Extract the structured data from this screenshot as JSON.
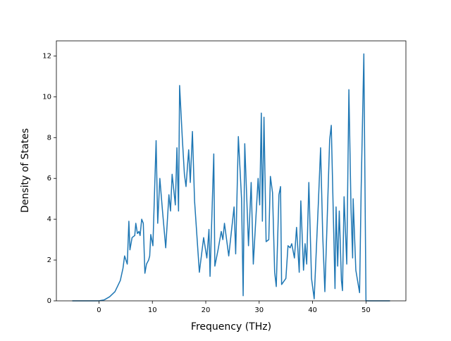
{
  "chart_data": {
    "type": "line",
    "x_label": "Frequency (THz)",
    "y_label": "Density of States",
    "xlim": [
      -7.975,
      57.475
    ],
    "ylim": [
      0,
      12.74
    ],
    "xticks": [
      0,
      10,
      20,
      30,
      40,
      50
    ],
    "yticks": [
      0,
      2,
      4,
      6,
      8,
      10,
      12
    ],
    "series": [
      {
        "color": "#1f77b4",
        "x": [
          -5,
          -2.5,
          0,
          1,
          2,
          3,
          4,
          4.5,
          4.8,
          5.3,
          5.6,
          5.8,
          6.2,
          6.7,
          6.9,
          7.2,
          7.5,
          7.7,
          8.0,
          8.3,
          8.6,
          8.9,
          9.3,
          9.5,
          9.7,
          10.1,
          10.7,
          11,
          11.4,
          11.9,
          12.5,
          13.1,
          13.4,
          13.7,
          14.3,
          14.6,
          14.9,
          15.1,
          15.6,
          16,
          16.3,
          16.8,
          17.1,
          17.5,
          17.9,
          18.8,
          19.6,
          20.2,
          20.6,
          20.8,
          21.5,
          21.7,
          22.3,
          22.9,
          23.2,
          23.5,
          24.3,
          25.3,
          25.6,
          26.1,
          26.7,
          27,
          27.3,
          28,
          28.5,
          28.9,
          29.8,
          30.1,
          30.4,
          30.6,
          30.9,
          31.3,
          31.8,
          32.1,
          32.5,
          32.9,
          33.2,
          33.7,
          34,
          34.2,
          35,
          35.4,
          35.8,
          36.1,
          36.6,
          37,
          37.5,
          37.8,
          38.3,
          38.6,
          38.9,
          39.3,
          39.8,
          40.3,
          41.1,
          41.5,
          41.9,
          42.3,
          42.7,
          43.2,
          43.5,
          44.2,
          44.4,
          44.7,
          45,
          45.4,
          45.6,
          45.9,
          46.4,
          46.8,
          47.2,
          47.5,
          47.6,
          48.1,
          48.8,
          49.1,
          49.6,
          50,
          52,
          54.5
        ],
        "values": [
          0,
          0,
          0,
          0.05,
          0.2,
          0.45,
          1.0,
          1.6,
          2.2,
          1.8,
          3.9,
          2.5,
          3.1,
          3.2,
          3.8,
          3.3,
          3.4,
          3.2,
          4.0,
          3.8,
          1.35,
          1.8,
          2.0,
          2.2,
          3.25,
          2.7,
          7.85,
          3.8,
          6.0,
          4.4,
          2.6,
          5.2,
          4.4,
          6.2,
          4.7,
          7.5,
          4.4,
          10.55,
          8.0,
          6.2,
          5.6,
          7.4,
          5.8,
          8.3,
          4.9,
          1.4,
          3.1,
          2.1,
          3.5,
          1.2,
          7.2,
          1.7,
          2.5,
          3.4,
          3.0,
          3.8,
          2.2,
          4.6,
          2.3,
          8.05,
          5.0,
          0.25,
          7.7,
          2.7,
          5.8,
          1.8,
          6.0,
          4.7,
          9.2,
          3.9,
          9.0,
          2.9,
          3.0,
          6.1,
          5.3,
          1.4,
          0.7,
          5.2,
          5.6,
          0.8,
          1.1,
          2.7,
          2.6,
          2.8,
          2.1,
          3.6,
          1.4,
          4.9,
          1.5,
          2.8,
          1.8,
          5.8,
          1.1,
          0.1,
          4.9,
          7.5,
          3.2,
          0.45,
          3.7,
          7.9,
          8.6,
          0.6,
          4.6,
          1.7,
          4.4,
          1.0,
          0.5,
          5.1,
          1.8,
          10.35,
          4.5,
          2.1,
          5.0,
          1.5,
          0.4,
          5.5,
          12.1,
          0,
          0,
          0
        ]
      }
    ]
  }
}
